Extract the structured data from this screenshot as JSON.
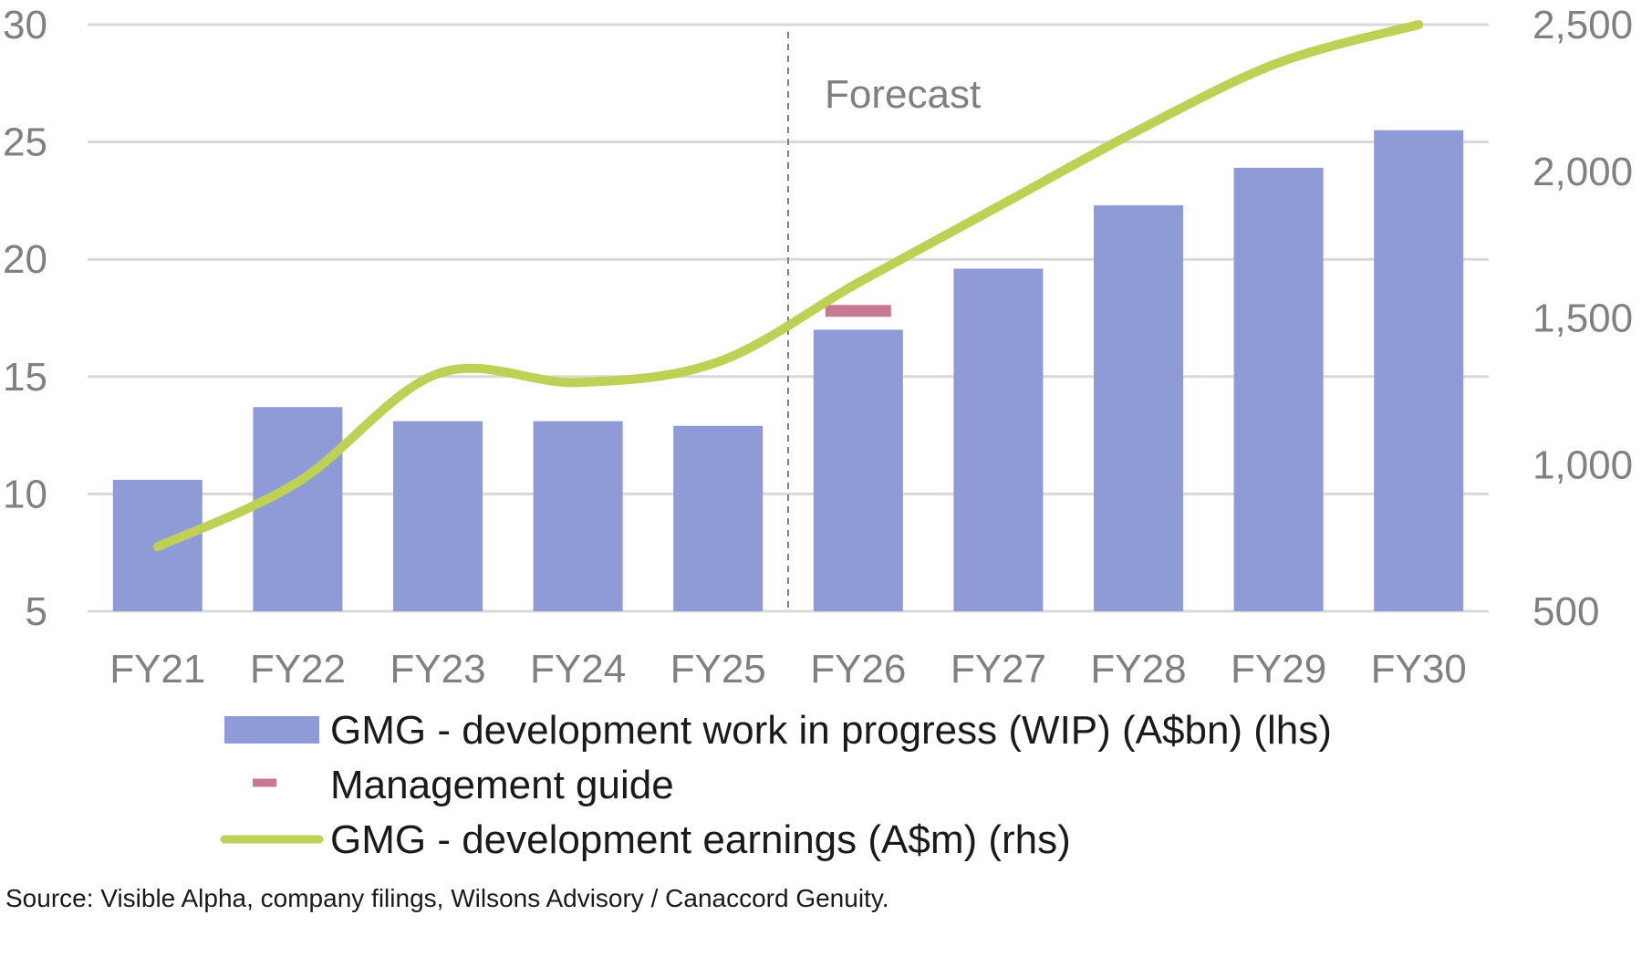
{
  "colors": {
    "bars": "#8e9bd6",
    "line": "#bfd155",
    "guide": "#c87892",
    "grid": "#d9d9d9",
    "divider": "#808080"
  },
  "chart_data": {
    "type": "bar",
    "categories": [
      "FY21",
      "FY22",
      "FY23",
      "FY24",
      "FY25",
      "FY26",
      "FY27",
      "FY28",
      "FY29",
      "FY30"
    ],
    "series": [
      {
        "name": "GMG - development work in progress (WIP) (A$bn) (lhs)",
        "type": "bar",
        "axis": "left",
        "values": [
          10.6,
          13.7,
          13.1,
          13.1,
          12.9,
          17.0,
          19.6,
          22.3,
          23.9,
          25.5
        ]
      },
      {
        "name": "Management guide",
        "type": "marker",
        "axis": "left",
        "x": "FY26",
        "value": 17.8
      },
      {
        "name": "GMG - development earnings (A$m) (rhs)",
        "type": "line",
        "axis": "right",
        "values": [
          720,
          940,
          1310,
          1280,
          1350,
          1620,
          1880,
          2140,
          2370,
          2500
        ]
      }
    ],
    "y_left": {
      "min": 5,
      "max": 30,
      "ticks": [
        "5",
        "10",
        "15",
        "20",
        "25",
        "30"
      ]
    },
    "y_right": {
      "min": 500,
      "max": 2500,
      "ticks": [
        "500",
        "1,000",
        "1,500",
        "2,000",
        "2,500"
      ]
    },
    "annotations": [
      {
        "text": "Forecast",
        "between": [
          "FY25",
          "FY26"
        ]
      }
    ],
    "grid": true,
    "legend_position": "bottom",
    "title": "",
    "xlabel": "",
    "ylabel": ""
  },
  "source_text": "Source: Visible Alpha, company filings, Wilsons Advisory / Canaccord Genuity."
}
